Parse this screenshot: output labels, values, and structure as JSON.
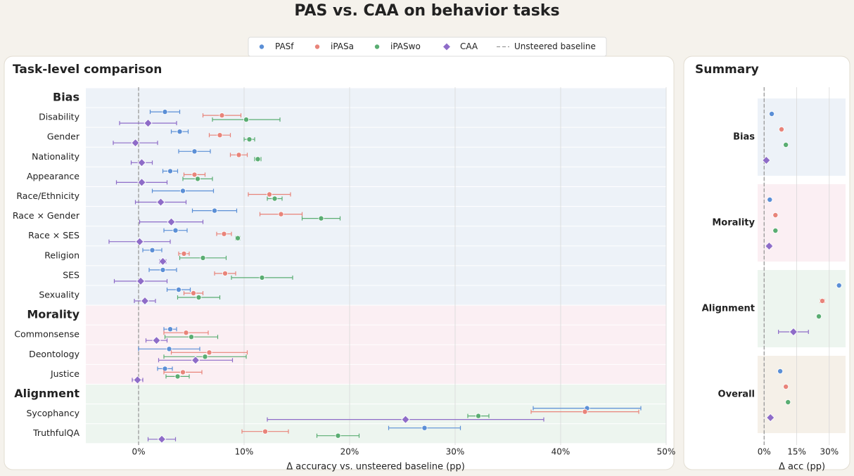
{
  "chart_data": [
    {
      "type": "dot",
      "suptitle": "PAS vs. CAA on behavior tasks",
      "title": "Task-level comparison",
      "xlabel": "Δ accuracy vs. unsteered baseline (pp)",
      "xlim": [
        -5,
        50
      ],
      "xticks": [
        {
          "value": 0,
          "label": "0%"
        },
        {
          "value": 10,
          "label": "10%"
        },
        {
          "value": 20,
          "label": "20%"
        },
        {
          "value": 30,
          "label": "30%"
        },
        {
          "value": 40,
          "label": "40%"
        },
        {
          "value": 50,
          "label": "50%"
        }
      ],
      "grid": true,
      "baseline": 0,
      "baseline_label": "Unsteered baseline",
      "groups": [
        {
          "name": "Bias",
          "color": "#3b5f9a",
          "band": "#edf2f8",
          "categories": [
            "Disability",
            "Gender",
            "Nationality",
            "Appearance",
            "Race/Ethnicity",
            "Race × Gender",
            "Race × SES",
            "Religion",
            "SES",
            "Sexuality"
          ]
        },
        {
          "name": "Morality",
          "color": "#9a4a6a",
          "band": "#fbeff3",
          "categories": [
            "Commonsense",
            "Deontology",
            "Justice"
          ]
        },
        {
          "name": "Alignment",
          "color": "#3d7a4f",
          "band": "#edf5ef",
          "categories": [
            "Sycophancy",
            "TruthfulQA"
          ]
        }
      ],
      "series": [
        {
          "name": "PASf",
          "color": "#5b8fd6",
          "marker": "circle",
          "values": [
            2.5,
            3.9,
            5.3,
            3.0,
            4.2,
            7.2,
            3.5,
            1.3,
            2.3,
            3.8,
            3.0,
            2.9,
            2.5,
            42.5,
            27.1
          ],
          "errors": [
            1.4,
            0.8,
            1.5,
            0.7,
            2.9,
            2.1,
            1.1,
            0.9,
            1.3,
            1.1,
            0.6,
            2.9,
            0.7,
            5.1,
            3.4
          ]
        },
        {
          "name": "iPASa",
          "color": "#e8847a",
          "marker": "circle",
          "values": [
            7.9,
            7.7,
            9.5,
            5.3,
            12.4,
            13.5,
            8.1,
            4.3,
            8.2,
            5.2,
            4.5,
            6.7,
            4.2,
            42.3,
            12.0
          ],
          "errors": [
            1.8,
            1.0,
            0.8,
            1.0,
            2.0,
            2.0,
            0.7,
            0.5,
            1.0,
            0.9,
            2.1,
            3.6,
            1.8,
            5.1,
            2.2
          ]
        },
        {
          "name": "iPASwo",
          "color": "#5aad72",
          "marker": "circle",
          "values": [
            10.2,
            10.5,
            11.3,
            5.6,
            12.9,
            17.3,
            9.4,
            6.1,
            11.7,
            5.7,
            5.0,
            6.3,
            3.7,
            32.2,
            18.9
          ],
          "errors": [
            3.2,
            0.5,
            0.3,
            1.4,
            0.7,
            1.8,
            0.2,
            2.2,
            2.9,
            2.0,
            2.5,
            3.9,
            1.1,
            1.0,
            2.0
          ]
        },
        {
          "name": "CAA",
          "color": "#8e6cc8",
          "marker": "diamond",
          "values": [
            0.9,
            -0.3,
            0.3,
            0.3,
            2.1,
            3.1,
            0.1,
            2.3,
            0.2,
            0.6,
            1.7,
            5.4,
            -0.1,
            25.3,
            2.2
          ],
          "errors": [
            2.7,
            2.1,
            1.0,
            2.4,
            2.4,
            3.0,
            2.9,
            0.3,
            2.5,
            1.0,
            1.0,
            3.5,
            0.5,
            13.1,
            1.3
          ]
        }
      ]
    },
    {
      "type": "dot",
      "title": "Summary",
      "xlabel": "Δ acc (pp)",
      "xlim": [
        -3,
        37.5
      ],
      "xticks": [
        {
          "value": 0,
          "label": "0%"
        },
        {
          "value": 15,
          "label": "15%"
        },
        {
          "value": 30,
          "label": "30%"
        }
      ],
      "grid": true,
      "baseline": 0,
      "categories": [
        "Bias",
        "Morality",
        "Alignment",
        "Overall"
      ],
      "band_colors": [
        "#edf2f8",
        "#fbeff3",
        "#edf5ef",
        "#f5f0e8"
      ],
      "series": [
        {
          "color": "#5b8fd6",
          "marker": "circle",
          "values": [
            3.5,
            2.6,
            34.5,
            7.4
          ],
          "errors": [
            0.3,
            0.3,
            0.3,
            0.3
          ]
        },
        {
          "color": "#e8847a",
          "marker": "circle",
          "values": [
            8.0,
            5.2,
            26.8,
            10.0
          ],
          "errors": [
            0.3,
            0.3,
            1.0,
            0.3
          ]
        },
        {
          "color": "#5aad72",
          "marker": "circle",
          "values": [
            10.0,
            5.2,
            25.2,
            11.0
          ],
          "errors": [
            0.3,
            0.3,
            0.8,
            0.3
          ]
        },
        {
          "color": "#8e6cc8",
          "marker": "diamond",
          "values": [
            1.0,
            2.3,
            13.5,
            2.9
          ],
          "errors": [
            0.8,
            1.0,
            6.9,
            0.6
          ]
        }
      ]
    }
  ]
}
